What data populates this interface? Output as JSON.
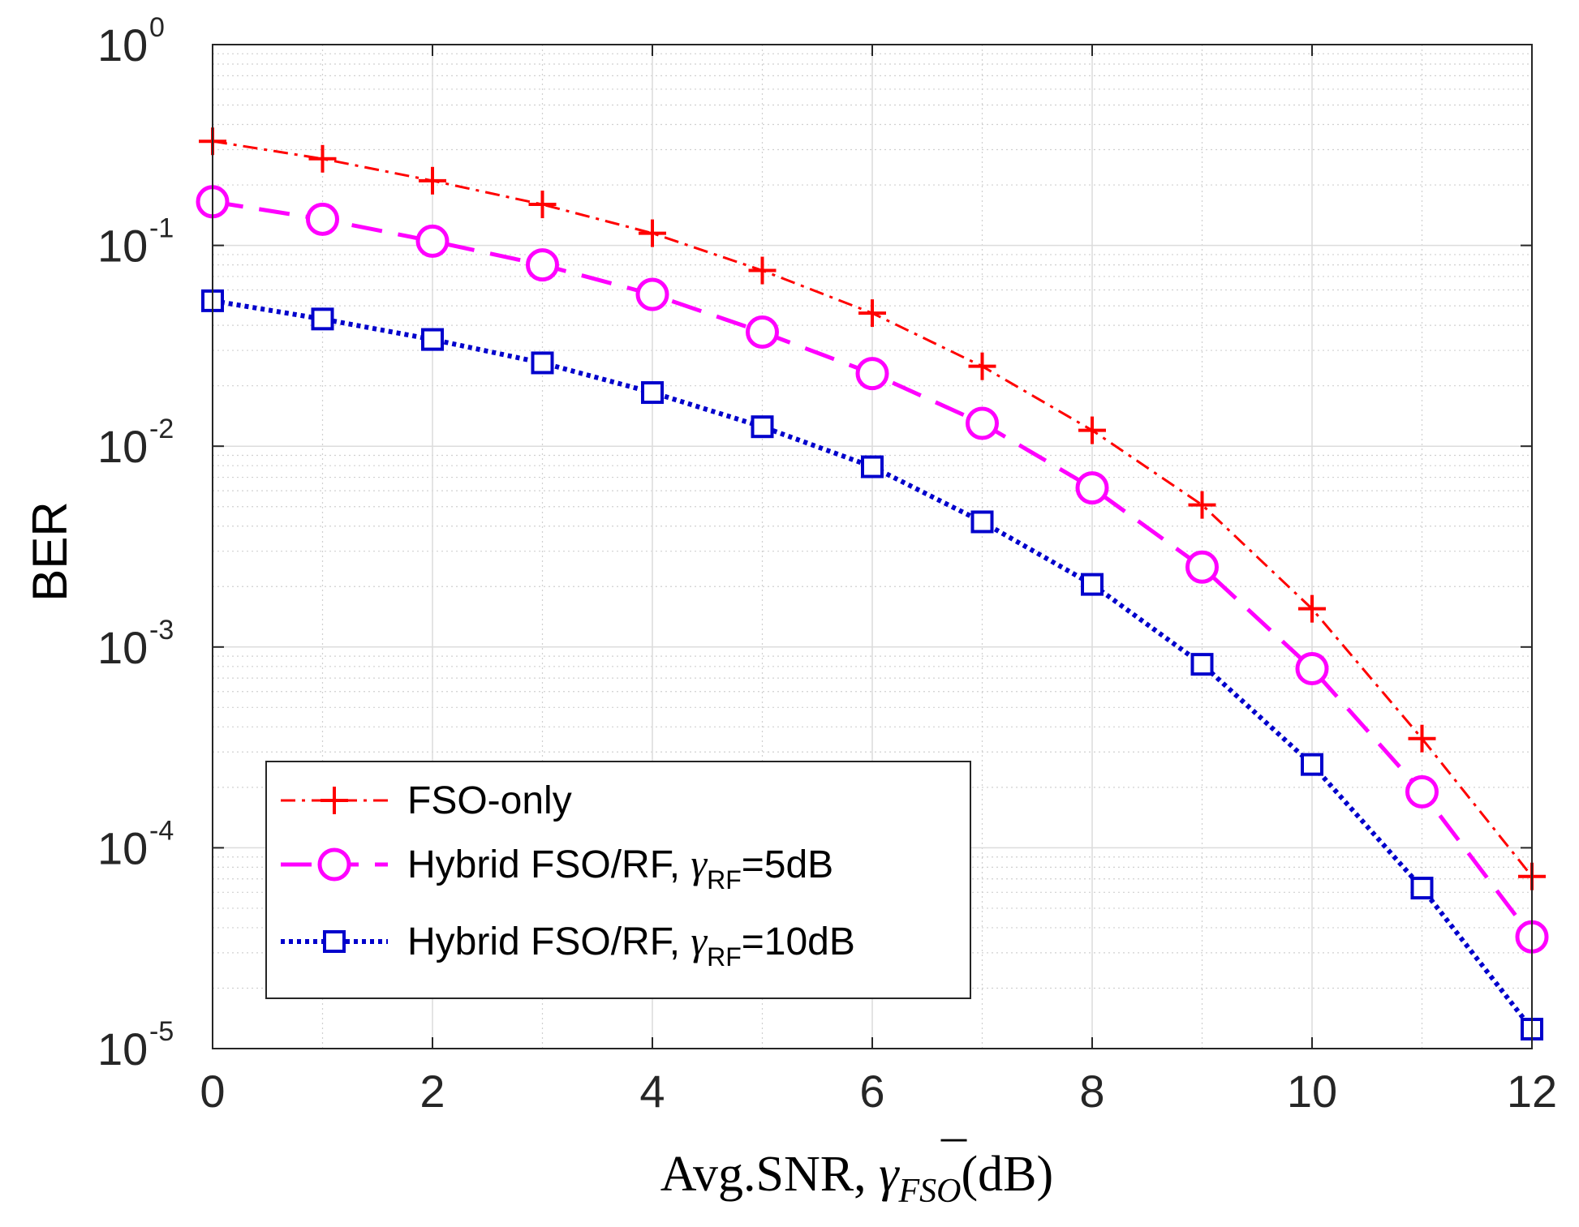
{
  "chart_data": {
    "type": "line",
    "title": "",
    "xlabel": {
      "prefix": "Avg.SNR, ",
      "gamma": "γ",
      "subscript": "FSO",
      "bar_over": "¯",
      "suffix": "(dB)"
    },
    "ylabel": "BER",
    "x": [
      0,
      1,
      2,
      3,
      4,
      5,
      6,
      7,
      8,
      9,
      10,
      11,
      12
    ],
    "xlim": [
      0,
      12
    ],
    "ylim": [
      1e-05,
      1
    ],
    "yscale": "log",
    "grid": true,
    "minor_grid": true,
    "x_ticks": [
      "0",
      "2",
      "4",
      "6",
      "8",
      "10",
      "12"
    ],
    "x_tick_values": [
      0,
      2,
      4,
      6,
      8,
      10,
      12
    ],
    "y_ticks": [
      {
        "base": "10",
        "exp": "0",
        "value": 1
      },
      {
        "base": "10",
        "exp": "-1",
        "value": 0.1
      },
      {
        "base": "10",
        "exp": "-2",
        "value": 0.01
      },
      {
        "base": "10",
        "exp": "-3",
        "value": 0.001
      },
      {
        "base": "10",
        "exp": "-4",
        "value": 0.0001
      },
      {
        "base": "10",
        "exp": "-5",
        "value": 1e-05
      }
    ],
    "legend_position": "lower-left",
    "series": [
      {
        "id": "fso-only",
        "name": "FSO-only",
        "color": "#ff0000",
        "line_style": "dash-dot",
        "marker": "plus",
        "values": [
          0.33,
          0.27,
          0.21,
          0.16,
          0.115,
          0.075,
          0.046,
          0.025,
          0.012,
          0.0051,
          0.00155,
          0.00035,
          7.2e-05
        ]
      },
      {
        "id": "hybrid-5db",
        "name": "Hybrid FSO/RF, ",
        "gamma": "γ",
        "subscript": "RF",
        "suffix": "=5dB",
        "color": "#ff00ff",
        "line_style": "dashed",
        "marker": "circle",
        "values": [
          0.165,
          0.135,
          0.105,
          0.08,
          0.057,
          0.037,
          0.023,
          0.013,
          0.0062,
          0.0025,
          0.00078,
          0.00019,
          3.6e-05
        ]
      },
      {
        "id": "hybrid-10db",
        "name": "Hybrid FSO/RF, ",
        "gamma": "γ",
        "subscript": "RF",
        "suffix": "=10dB",
        "color": "#0000cc",
        "line_style": "dotted",
        "marker": "square",
        "values": [
          0.053,
          0.043,
          0.034,
          0.026,
          0.0185,
          0.0125,
          0.0079,
          0.0042,
          0.00205,
          0.00082,
          0.00026,
          6.3e-05,
          1.25e-05
        ]
      }
    ]
  }
}
